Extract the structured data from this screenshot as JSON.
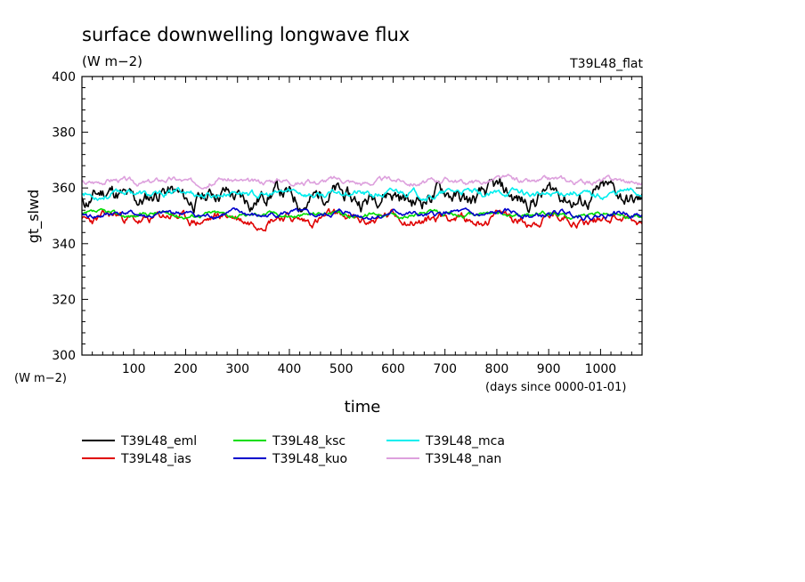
{
  "chart_data": {
    "type": "line",
    "title": "surface downwelling longwave flux",
    "units_label": "(W m−2)",
    "experiment_label": "T39L48_flat",
    "ylabel": "gt_slwd",
    "xlabel": "time",
    "x_units_label": "(days since 0000-01-01)",
    "y_units_label": "(W m−2)",
    "xlim": [
      0,
      1080
    ],
    "ylim": [
      300,
      400
    ],
    "x_ticks": [
      100,
      200,
      300,
      400,
      500,
      600,
      700,
      800,
      900,
      1000
    ],
    "y_ticks": [
      300,
      320,
      340,
      360,
      380,
      400
    ],
    "series": [
      {
        "name": "T39L48_eml",
        "color": "#000000",
        "mean": 357,
        "amplitude": 4.5,
        "seed": 11
      },
      {
        "name": "T39L48_ias",
        "color": "#e00000",
        "mean": 349,
        "amplitude": 2.6,
        "seed": 23
      },
      {
        "name": "T39L48_ksc",
        "color": "#00dd00",
        "mean": 350.5,
        "amplitude": 1.2,
        "seed": 37
      },
      {
        "name": "T39L48_kuo",
        "color": "#0000cc",
        "mean": 350.5,
        "amplitude": 1.5,
        "seed": 41
      },
      {
        "name": "T39L48_mca",
        "color": "#00eeee",
        "mean": 358,
        "amplitude": 1.8,
        "seed": 53
      },
      {
        "name": "T39L48_nan",
        "color": "#dda0dd",
        "mean": 362.5,
        "amplitude": 1.5,
        "seed": 67
      }
    ]
  }
}
